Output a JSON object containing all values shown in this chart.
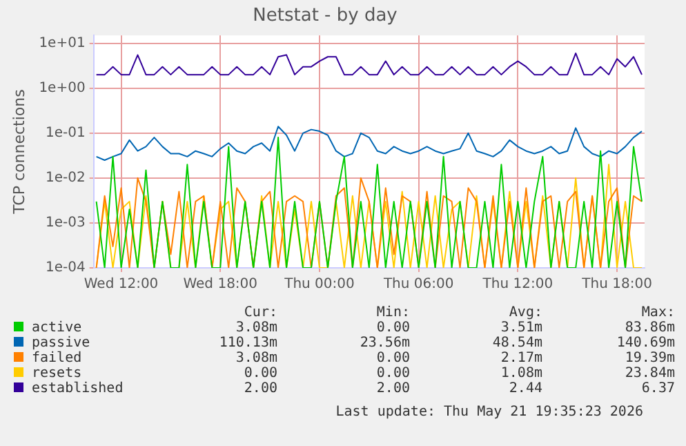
{
  "chart_data": {
    "type": "line",
    "title": "Netstat - by day",
    "ylabel": "TCP connections",
    "log": "y",
    "grid": true,
    "legend": "bottom",
    "marker": "none",
    "line_style": "solid",
    "x": [
      "2026-05-20T10:30",
      "2026-05-20T11:00",
      "2026-05-20T11:30",
      "2026-05-20T12:00",
      "2026-05-20T12:30",
      "2026-05-20T13:00",
      "2026-05-20T13:30",
      "2026-05-20T14:00",
      "2026-05-20T14:30",
      "2026-05-20T15:00",
      "2026-05-20T15:30",
      "2026-05-20T16:00",
      "2026-05-20T16:30",
      "2026-05-20T17:00",
      "2026-05-20T17:30",
      "2026-05-20T18:00",
      "2026-05-20T18:30",
      "2026-05-20T19:00",
      "2026-05-20T19:30",
      "2026-05-20T20:00",
      "2026-05-20T20:30",
      "2026-05-20T21:00",
      "2026-05-20T21:30",
      "2026-05-20T22:00",
      "2026-05-20T22:30",
      "2026-05-20T23:00",
      "2026-05-20T23:30",
      "2026-05-21T00:00",
      "2026-05-21T00:30",
      "2026-05-21T01:00",
      "2026-05-21T01:30",
      "2026-05-21T02:00",
      "2026-05-21T02:30",
      "2026-05-21T03:00",
      "2026-05-21T03:30",
      "2026-05-21T04:00",
      "2026-05-21T04:30",
      "2026-05-21T05:00",
      "2026-05-21T05:30",
      "2026-05-21T06:00",
      "2026-05-21T06:30",
      "2026-05-21T07:00",
      "2026-05-21T07:30",
      "2026-05-21T08:00",
      "2026-05-21T08:30",
      "2026-05-21T09:00",
      "2026-05-21T09:30",
      "2026-05-21T10:00",
      "2026-05-21T10:30",
      "2026-05-21T11:00",
      "2026-05-21T11:30",
      "2026-05-21T12:00",
      "2026-05-21T12:30",
      "2026-05-21T13:00",
      "2026-05-21T13:30",
      "2026-05-21T14:00",
      "2026-05-21T14:30",
      "2026-05-21T15:00",
      "2026-05-21T15:30",
      "2026-05-21T16:00",
      "2026-05-21T16:30",
      "2026-05-21T17:00",
      "2026-05-21T17:30",
      "2026-05-21T18:00",
      "2026-05-21T18:30",
      "2026-05-21T19:00",
      "2026-05-21T19:30"
    ],
    "xlim": [
      "2026-05-20T10:20",
      "2026-05-21T19:40"
    ],
    "xticks": [
      {
        "value": "2026-05-20T12:00",
        "label": "Wed 12:00"
      },
      {
        "value": "2026-05-20T18:00",
        "label": "Wed 18:00"
      },
      {
        "value": "2026-05-21T00:00",
        "label": "Thu 00:00"
      },
      {
        "value": "2026-05-21T06:00",
        "label": "Thu 06:00"
      },
      {
        "value": "2026-05-21T12:00",
        "label": "Thu 12:00"
      },
      {
        "value": "2026-05-21T18:00",
        "label": "Thu 18:00"
      }
    ],
    "ylim": [
      0.0001,
      15
    ],
    "yticks": [
      {
        "value": 0.0001,
        "label": "1e-04"
      },
      {
        "value": 0.001,
        "label": "1e-03"
      },
      {
        "value": 0.01,
        "label": "1e-02"
      },
      {
        "value": 0.1,
        "label": "1e-01"
      },
      {
        "value": 1,
        "label": "1e+00"
      },
      {
        "value": 10,
        "label": "1e+01"
      }
    ],
    "series": [
      {
        "name": "active",
        "color": "#00cc00",
        "values": [
          0.003,
          0.0001,
          0.03,
          0.0001,
          0.002,
          0.0001,
          0.015,
          0.0001,
          0.003,
          0.0001,
          0.0001,
          0.02,
          0.0001,
          0.003,
          0.0001,
          0.0001,
          0.05,
          0.0001,
          0.003,
          0.0001,
          0.003,
          0.0001,
          0.08,
          0.0001,
          0.003,
          0.0001,
          0.0001,
          0.003,
          0.0001,
          0.003,
          0.03,
          0.0001,
          0.003,
          0.0001,
          0.02,
          0.0001,
          0.003,
          0.0001,
          0.003,
          0.0001,
          0.003,
          0.0001,
          0.03,
          0.0001,
          0.003,
          0.0001,
          0.0001,
          0.003,
          0.0001,
          0.02,
          0.0001,
          0.003,
          0.0001,
          0.003,
          0.03,
          0.0001,
          0.003,
          0.0001,
          0.0001,
          0.003,
          0.0001,
          0.04,
          0.0001,
          0.003,
          0.0001,
          0.05,
          0.003
        ]
      },
      {
        "name": "passive",
        "color": "#0066b3",
        "values": [
          0.03,
          0.025,
          0.03,
          0.035,
          0.07,
          0.04,
          0.05,
          0.08,
          0.05,
          0.035,
          0.035,
          0.03,
          0.04,
          0.035,
          0.03,
          0.045,
          0.06,
          0.04,
          0.035,
          0.05,
          0.06,
          0.04,
          0.14,
          0.09,
          0.04,
          0.1,
          0.12,
          0.11,
          0.09,
          0.04,
          0.03,
          0.035,
          0.1,
          0.08,
          0.04,
          0.035,
          0.05,
          0.04,
          0.035,
          0.04,
          0.05,
          0.04,
          0.035,
          0.04,
          0.045,
          0.1,
          0.04,
          0.035,
          0.03,
          0.04,
          0.07,
          0.05,
          0.04,
          0.035,
          0.04,
          0.05,
          0.035,
          0.04,
          0.13,
          0.05,
          0.035,
          0.03,
          0.04,
          0.035,
          0.05,
          0.08,
          0.11
        ]
      },
      {
        "name": "failed",
        "color": "#ff8000",
        "values": [
          0.0001,
          0.004,
          0.0003,
          0.006,
          0.0001,
          0.01,
          0.003,
          0.0001,
          0.003,
          0.0002,
          0.005,
          0.0001,
          0.003,
          0.004,
          0.0001,
          0.003,
          0.0001,
          0.006,
          0.003,
          0.0001,
          0.003,
          0.005,
          0.0001,
          0.003,
          0.004,
          0.003,
          0.0001,
          0.003,
          0.0001,
          0.004,
          0.006,
          0.0001,
          0.01,
          0.003,
          0.0001,
          0.006,
          0.0002,
          0.004,
          0.003,
          0.0001,
          0.005,
          0.0001,
          0.004,
          0.003,
          0.0001,
          0.006,
          0.003,
          0.0001,
          0.004,
          0.0001,
          0.003,
          0.0001,
          0.006,
          0.0001,
          0.003,
          0.004,
          0.0001,
          0.003,
          0.005,
          0.0001,
          0.004,
          0.0001,
          0.003,
          0.006,
          0.0001,
          0.004,
          0.003
        ]
      },
      {
        "name": "resets",
        "color": "#ffcc00",
        "values": [
          0.0001,
          0.003,
          0.0001,
          0.002,
          0.003,
          0.0001,
          0.004,
          0.0001,
          0.003,
          0.0001,
          0.0001,
          0.003,
          0.0001,
          0.004,
          0.0001,
          0.002,
          0.003,
          0.0001,
          0.003,
          0.0001,
          0.004,
          0.0001,
          0.003,
          0.0001,
          0.002,
          0.0001,
          0.003,
          0.0001,
          0.0001,
          0.003,
          0.0001,
          0.004,
          0.0001,
          0.003,
          0.0001,
          0.003,
          0.0001,
          0.005,
          0.0001,
          0.003,
          0.0001,
          0.004,
          0.0001,
          0.002,
          0.003,
          0.0001,
          0.004,
          0.0001,
          0.003,
          0.0001,
          0.005,
          0.0001,
          0.003,
          0.0001,
          0.004,
          0.0001,
          0.003,
          0.0001,
          0.01,
          0.0001,
          0.004,
          0.0001,
          0.02,
          0.0001,
          0.003,
          0.0001,
          0.0001
        ]
      },
      {
        "name": "established",
        "color": "#330099",
        "values": [
          2,
          2,
          3,
          2,
          2,
          5.5,
          2,
          2,
          3,
          2,
          3,
          2,
          2,
          2,
          3,
          2,
          2,
          3,
          2,
          2,
          3,
          2,
          5,
          5.5,
          2,
          3,
          3,
          4,
          5,
          5,
          2,
          2,
          3,
          2,
          2,
          4,
          2,
          3,
          2,
          2,
          3,
          2,
          2,
          3,
          2,
          3,
          2,
          2,
          3,
          2,
          3,
          4,
          3,
          2,
          2,
          3,
          2,
          2,
          6,
          2,
          2,
          3,
          2,
          4.5,
          3,
          5,
          2
        ]
      }
    ],
    "annotations": [
      "Cur:",
      "Min:",
      "Avg:",
      "Max:",
      "3.08m",
      "0.00",
      "3.51m",
      "83.86m",
      "110.13m",
      "23.56m",
      "48.54m",
      "140.69m",
      "3.08m",
      "0.00",
      "2.17m",
      "19.39m",
      "0.00",
      "0.00",
      "1.08m",
      "23.84m",
      "2.00",
      "2.00",
      "2.44",
      "6.37",
      "Last update: Thu May 21 19:35:23 2026"
    ]
  }
}
